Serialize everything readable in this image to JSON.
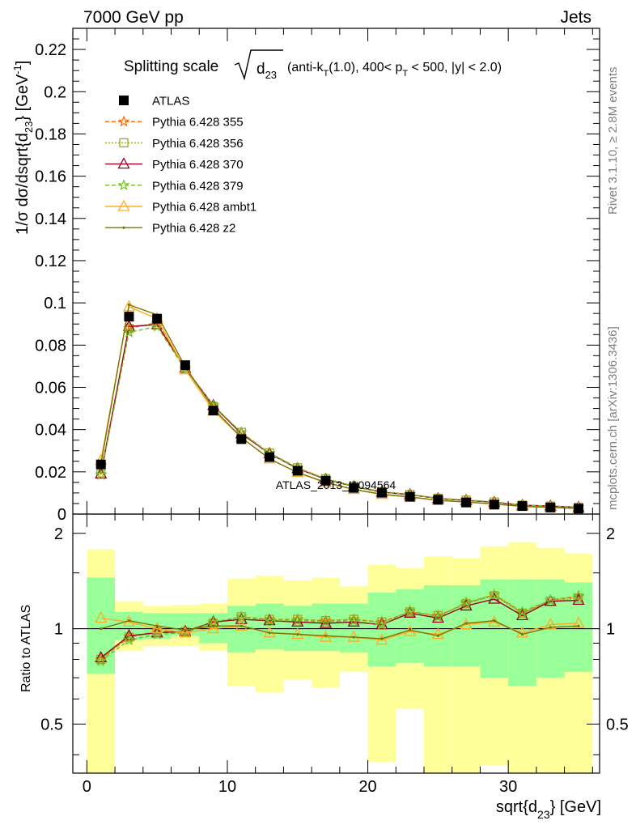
{
  "header": {
    "left": "7000 GeV pp",
    "right": "Jets"
  },
  "side": {
    "rivet": "Rivet 3.1.10, ≥ 2.8M events",
    "mcplots": "mcplots.cern.ch [arXiv:1306.3436]"
  },
  "watermark": "ATLAS_2013_I1094564",
  "colors": {
    "atlas": "#000000",
    "p355": "#ff6600",
    "p356": "#99aa22",
    "p370": "#990022",
    "p379": "#77bb22",
    "ambt1": "#ffaa22",
    "z2": "#777700",
    "band_inner": "#99ff99",
    "band_outer": "#ffff99"
  },
  "chart_data": {
    "type": "line",
    "title": "Splitting scale √d23 (anti-kT(1.0), 400< pT < 500, |y| < 2.0)",
    "title_parts": {
      "a": "Splitting scale",
      "b": "d",
      "c": "23",
      "d": "(anti-k",
      "e": "T",
      "f": "(1.0), 400< p",
      "g": "T",
      "h": " < 500, |y| < 2.0)"
    },
    "ylabel": "1/σ dσ/dsqrt{d23} [GeV-1]",
    "ylabel_parts": {
      "a": "1/σ dσ/dsqrt{d",
      "b": "23",
      "c": "} [GeV",
      "d": "-1",
      "e": "]"
    },
    "xlabel": "sqrt{d23} [GeV]",
    "xlabel_parts": {
      "a": "sqrt{d",
      "b": "23",
      "c": "} [GeV]"
    },
    "ratio_ylabel": "Ratio to ATLAS",
    "xlim": [
      -1,
      36.5
    ],
    "ylim": [
      0,
      0.23
    ],
    "ratio_ylim": [
      0.35,
      2.3
    ],
    "x_ticks": [
      "0",
      "10",
      "20",
      "30"
    ],
    "y_ticks": [
      "0",
      "0.02",
      "0.04",
      "0.06",
      "0.08",
      "0.1",
      "0.12",
      "0.14",
      "0.16",
      "0.18",
      "0.2",
      "0.22"
    ],
    "ratio_ticks": [
      "0.5",
      "1",
      "2"
    ],
    "x": [
      1,
      3,
      5,
      7,
      9,
      11,
      13,
      15,
      17,
      19,
      21,
      23,
      25,
      27,
      29,
      31,
      33,
      35
    ],
    "bin_edges": [
      0,
      2,
      4,
      6,
      8,
      10,
      12,
      14,
      16,
      18,
      20,
      22,
      24,
      26,
      28,
      30,
      32,
      34,
      36
    ],
    "atlas": [
      0.0235,
      0.0935,
      0.0925,
      0.0705,
      0.049,
      0.0355,
      0.027,
      0.0205,
      0.0158,
      0.0124,
      0.0101,
      0.0082,
      0.0068,
      0.0055,
      0.0045,
      0.0038,
      0.0031,
      0.0026
    ],
    "band_inner": [
      [
        0.72,
        1.45
      ],
      [
        0.92,
        1.13
      ],
      [
        0.93,
        1.12
      ],
      [
        0.95,
        1.12
      ],
      [
        0.9,
        1.12
      ],
      [
        0.84,
        1.18
      ],
      [
        0.86,
        1.2
      ],
      [
        0.85,
        1.18
      ],
      [
        0.85,
        1.2
      ],
      [
        0.84,
        1.2
      ],
      [
        0.76,
        1.3
      ],
      [
        0.78,
        1.33
      ],
      [
        0.76,
        1.37
      ],
      [
        0.76,
        1.37
      ],
      [
        0.7,
        1.43
      ],
      [
        0.66,
        1.43
      ],
      [
        0.7,
        1.43
      ],
      [
        0.73,
        1.4
      ]
    ],
    "band_outer": [
      [
        0.35,
        1.78
      ],
      [
        0.85,
        1.22
      ],
      [
        0.88,
        1.18
      ],
      [
        0.88,
        1.19
      ],
      [
        0.85,
        1.2
      ],
      [
        0.66,
        1.44
      ],
      [
        0.63,
        1.47
      ],
      [
        0.69,
        1.42
      ],
      [
        0.65,
        1.45
      ],
      [
        0.73,
        1.36
      ],
      [
        0.38,
        1.59
      ],
      [
        0.56,
        1.55
      ],
      [
        0.35,
        1.69
      ],
      [
        0.35,
        1.67
      ],
      [
        0.37,
        1.82
      ],
      [
        0.35,
        1.87
      ],
      [
        0.35,
        1.8
      ],
      [
        0.35,
        1.73
      ]
    ],
    "series": [
      {
        "name": "ATLAS",
        "label": "ATLAS",
        "colorKey": "atlas",
        "marker": "square",
        "dash": ""
      },
      {
        "name": "Pythia 6.428 355",
        "label": "Pythia 6.428 355",
        "colorKey": "p355",
        "marker": "star",
        "dash": "5,3",
        "ratio": [
          0.8,
          0.94,
          0.98,
          0.98,
          1.04,
          1.09,
          1.07,
          1.07,
          1.06,
          1.07,
          1.05,
          1.13,
          1.1,
          1.2,
          1.28,
          1.12,
          1.23,
          1.26
        ]
      },
      {
        "name": "Pythia 6.428 356",
        "label": "Pythia 6.428 356",
        "colorKey": "p356",
        "marker": "openSquare",
        "dash": "2,2",
        "ratio": [
          0.8,
          0.94,
          0.98,
          0.98,
          1.04,
          1.09,
          1.07,
          1.07,
          1.06,
          1.07,
          1.05,
          1.13,
          1.1,
          1.2,
          1.27,
          1.12,
          1.22,
          1.25
        ]
      },
      {
        "name": "Pythia 6.428 370",
        "label": "Pythia 6.428 370",
        "colorKey": "p370",
        "marker": "triangle",
        "dash": "",
        "ratio": [
          0.81,
          0.95,
          0.97,
          0.98,
          1.05,
          1.07,
          1.06,
          1.05,
          1.04,
          1.05,
          1.03,
          1.12,
          1.08,
          1.18,
          1.24,
          1.1,
          1.22,
          1.23
        ]
      },
      {
        "name": "Pythia 6.428 379",
        "label": "Pythia 6.428 379",
        "colorKey": "p379",
        "marker": "star",
        "dash": "5,3",
        "ratio": [
          0.79,
          0.92,
          0.96,
          0.97,
          1.05,
          1.09,
          1.06,
          1.06,
          1.05,
          1.06,
          1.03,
          1.14,
          1.09,
          1.21,
          1.28,
          1.13,
          1.23,
          1.27
        ]
      },
      {
        "name": "Pythia 6.428 ambt1",
        "label": "Pythia 6.428 ambt1",
        "colorKey": "ambt1",
        "marker": "triangle",
        "dash": "",
        "ratio": [
          1.08,
          1.05,
          1.0,
          0.97,
          1.0,
          1.02,
          0.97,
          0.96,
          0.94,
          0.94,
          0.92,
          0.98,
          0.96,
          1.03,
          1.05,
          0.97,
          1.03,
          1.04
        ]
      },
      {
        "name": "Pythia 6.428 z2",
        "label": "Pythia 6.428 z2",
        "colorKey": "z2",
        "marker": "dot",
        "dash": "",
        "ratio": [
          1.0,
          1.06,
          1.02,
          0.99,
          1.02,
          1.02,
          0.97,
          0.96,
          0.95,
          0.94,
          0.93,
          0.99,
          0.95,
          1.04,
          1.06,
          0.96,
          1.01,
          1.02
        ]
      }
    ]
  }
}
